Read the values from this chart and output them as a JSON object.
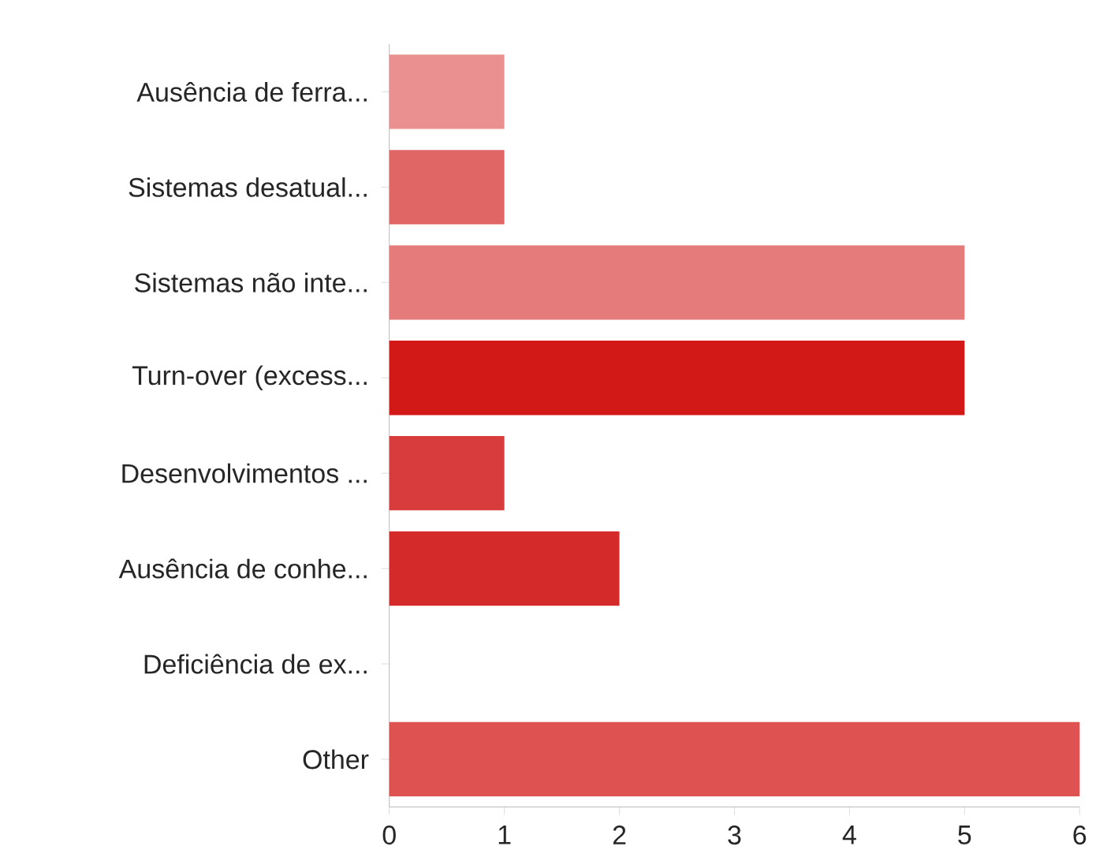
{
  "chart_data": {
    "type": "bar",
    "orientation": "horizontal",
    "categories": [
      "Ausência de ferra...",
      "Sistemas desatual...",
      "Sistemas não inte...",
      "Turn-over (excess...",
      "Desenvolvimentos ...",
      "Ausência de conhe...",
      "Deficiência de ex...",
      "Other"
    ],
    "values": [
      1,
      1,
      5,
      5,
      1,
      2,
      0,
      6
    ],
    "colors": [
      "#eb9090",
      "#e06666",
      "#e57b7b",
      "#d31818",
      "#d93c3c",
      "#d42a2a",
      "#d94a4a",
      "#de5252"
    ],
    "xlim": [
      0,
      6
    ],
    "xticks": [
      0,
      1,
      2,
      3,
      4,
      5,
      6
    ],
    "grid": false
  }
}
